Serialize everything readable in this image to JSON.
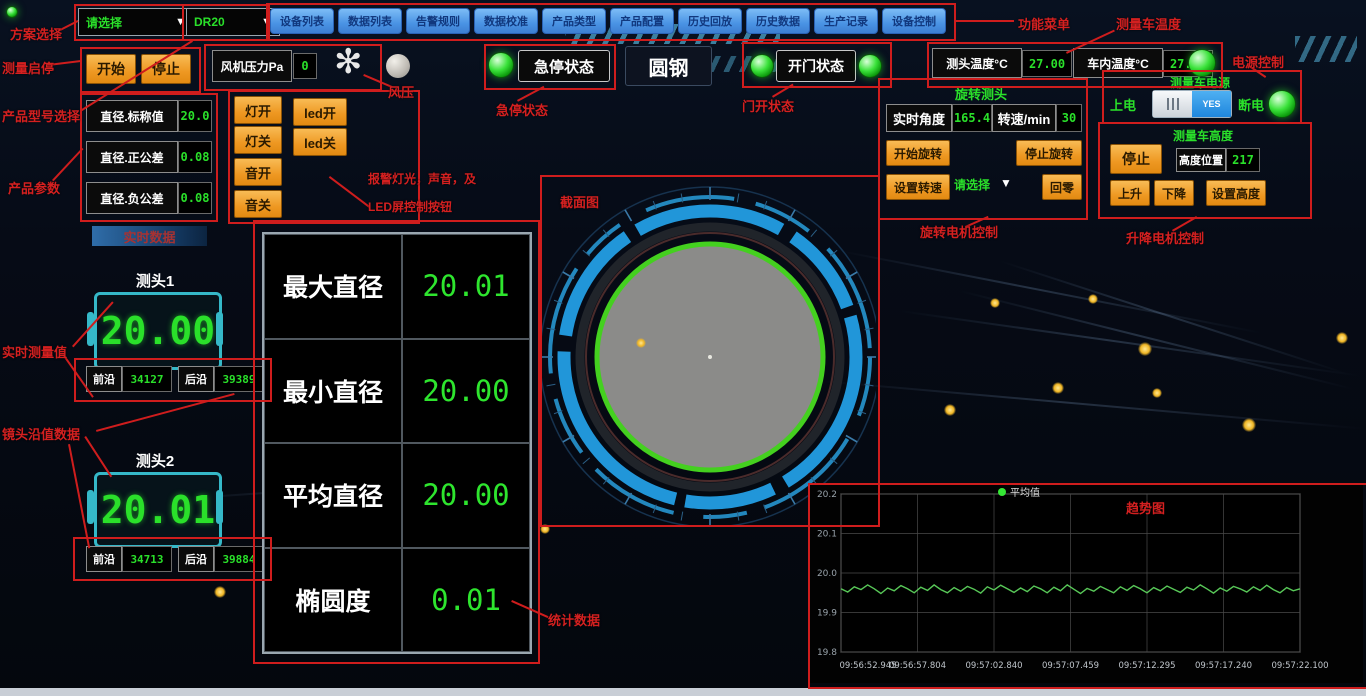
{
  "colors": {
    "annotation_red": "#cf1d1d",
    "menu_blue": "#4a93e4",
    "button_orange": "#ee9822",
    "value_green": "#2ae02a",
    "led_green": "#35e835",
    "display_cyan": "#35b8c8",
    "ring_blue": "#2196d9",
    "circle_green": "#44d01f",
    "disc_gray": "#8b8b89"
  },
  "header": {
    "scheme_value": "请选择",
    "model_value": "DR20",
    "menu": [
      "设备列表",
      "数据列表",
      "告警规则",
      "数据校准",
      "产品类型",
      "产品配置",
      "历史回放",
      "历史数据",
      "生产记录",
      "设备控制"
    ]
  },
  "annotations": {
    "scheme": "方案选择",
    "start_stop": "测量启停",
    "product_model": "产品型号选择",
    "product_params": "产品参数",
    "fan": "风压",
    "alarm_line1": "报警灯光，声音，及",
    "alarm_line2": "LED屏控制按钮",
    "estop": "急停状态",
    "door": "门开状态",
    "menu": "功能菜单",
    "car_temp": "测量车温度",
    "power": "电源控制",
    "rotate": "旋转电机控制",
    "lift": "升降电机控制",
    "realtime": "实时测量值",
    "edges": "镜头沿值数据",
    "stats": "统计数据",
    "section": "截面图",
    "trend": "趋势图"
  },
  "measure": {
    "start": "开始",
    "stop": "停止"
  },
  "fan": {
    "label": "风机压力Pa",
    "value": "0",
    "icon": "✻"
  },
  "alarm_buttons": {
    "light_on": "灯开",
    "light_off": "灯关",
    "led_on": "led开",
    "led_off": "led关",
    "sound_on": "音开",
    "sound_off": "音关"
  },
  "status": {
    "estop": "急停状态",
    "product": "圆钢",
    "door": "开门状态"
  },
  "temps": {
    "probe_label": "测头温度°C",
    "probe_value": "27.00",
    "cabin_label": "车内温度°C",
    "cabin_value": "27.20"
  },
  "rotate": {
    "title": "旋转测头",
    "angle_label": "实时角度",
    "angle_value": "165.4",
    "speed_label": "转速/min",
    "speed_value": "30",
    "start": "开始旋转",
    "stop": "停止旋转",
    "set_speed": "设置转速",
    "select": "请选择",
    "zero": "回零"
  },
  "power": {
    "title": "测量车电源",
    "on": "上电",
    "toggle": "YES",
    "off": "断电"
  },
  "height": {
    "title": "测量车高度",
    "stop": "停止",
    "pos_label": "高度位置",
    "pos_value": "217",
    "up": "上升",
    "down": "下降",
    "set": "设置高度"
  },
  "params": [
    {
      "label": "直径.标称值",
      "value": "20.0"
    },
    {
      "label": "直径.正公差",
      "value": "0.08"
    },
    {
      "label": "直径.负公差",
      "value": "0.08"
    }
  ],
  "realtime": {
    "header": "实时数据",
    "probes": [
      {
        "name": "测头1",
        "value": "20.00",
        "front_label": "前沿",
        "front_value": "34127",
        "rear_label": "后沿",
        "rear_value": "39389"
      },
      {
        "name": "测头2",
        "value": "20.01",
        "front_label": "前沿",
        "front_value": "34713",
        "rear_label": "后沿",
        "rear_value": "39884"
      }
    ]
  },
  "stats": {
    "rows": [
      {
        "label": "最大直径",
        "value": "20.01"
      },
      {
        "label": "最小直径",
        "value": "20.00"
      },
      {
        "label": "平均直径",
        "value": "20.00"
      },
      {
        "label": "椭圆度",
        "value": "0.01"
      }
    ]
  },
  "chart_data": {
    "type": "line",
    "title": "趋势图",
    "legend_position": "top-center",
    "grid": true,
    "ylim": [
      19.8,
      20.2
    ],
    "yticks": [
      20.2,
      20.1,
      20.0,
      19.9,
      19.8
    ],
    "x_labels": [
      "09:56:52.945",
      "09:56:57.804",
      "09:57:02.840",
      "09:57:07.459",
      "09:57:12.295",
      "09:57:17.240",
      "09:57:22.100"
    ],
    "series": [
      {
        "name": "平均值",
        "color": "#58c858",
        "values": [
          19.96,
          19.952,
          19.965,
          19.958,
          19.97,
          19.96,
          19.948,
          19.962,
          19.955,
          19.968,
          19.96,
          19.95,
          19.964,
          19.956,
          19.97,
          19.958,
          19.95,
          19.963,
          19.954,
          19.966,
          19.959,
          19.949,
          19.965,
          19.957,
          19.969,
          19.96,
          19.951,
          19.962,
          19.953,
          19.967,
          19.96,
          19.95,
          19.964,
          19.955,
          19.97,
          19.959,
          19.948,
          19.961,
          19.954,
          19.966,
          19.958,
          19.95,
          19.965,
          19.956,
          19.968,
          19.96,
          19.95,
          19.963,
          19.955,
          19.967,
          19.959,
          19.951,
          19.964,
          19.957,
          19.97,
          19.96,
          19.949,
          19.962,
          19.954,
          19.966,
          19.96,
          19.952,
          19.965,
          19.956,
          19.969,
          19.958,
          19.95,
          19.963,
          19.955,
          19.96
        ]
      }
    ]
  }
}
